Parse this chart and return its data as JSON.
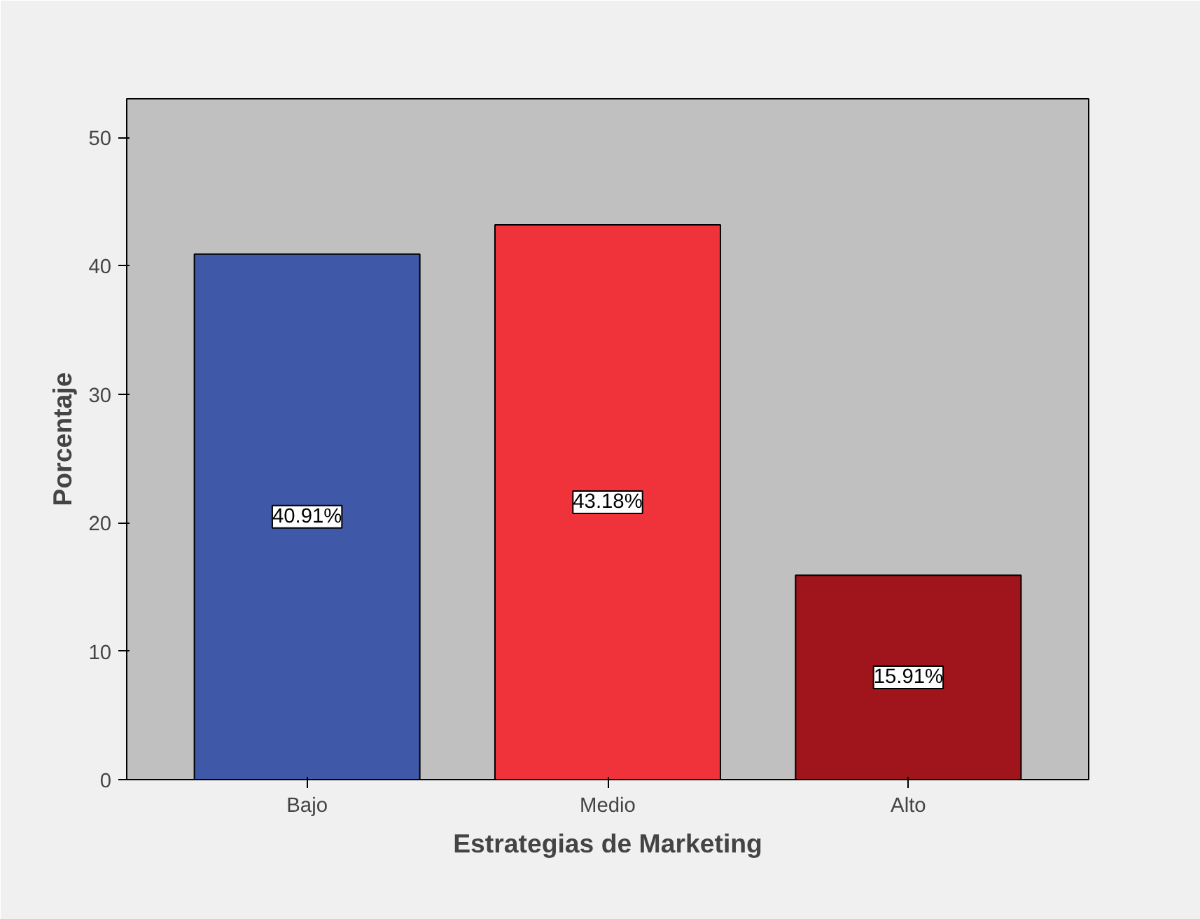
{
  "chart_data": {
    "type": "bar",
    "xlabel": "Estrategias de Marketing",
    "ylabel": "Porcentaje",
    "categories": [
      "Bajo",
      "Medio",
      "Alto"
    ],
    "values": [
      40.91,
      43.18,
      15.91
    ],
    "colors": [
      "#3f58a8",
      "#f0333a",
      "#a0151b"
    ],
    "value_labels": [
      "40.91%",
      "43.18%",
      "15.91%"
    ],
    "ylim": [
      0,
      53
    ],
    "yticks": [
      0,
      10,
      20,
      30,
      40,
      50
    ],
    "grid": false
  }
}
